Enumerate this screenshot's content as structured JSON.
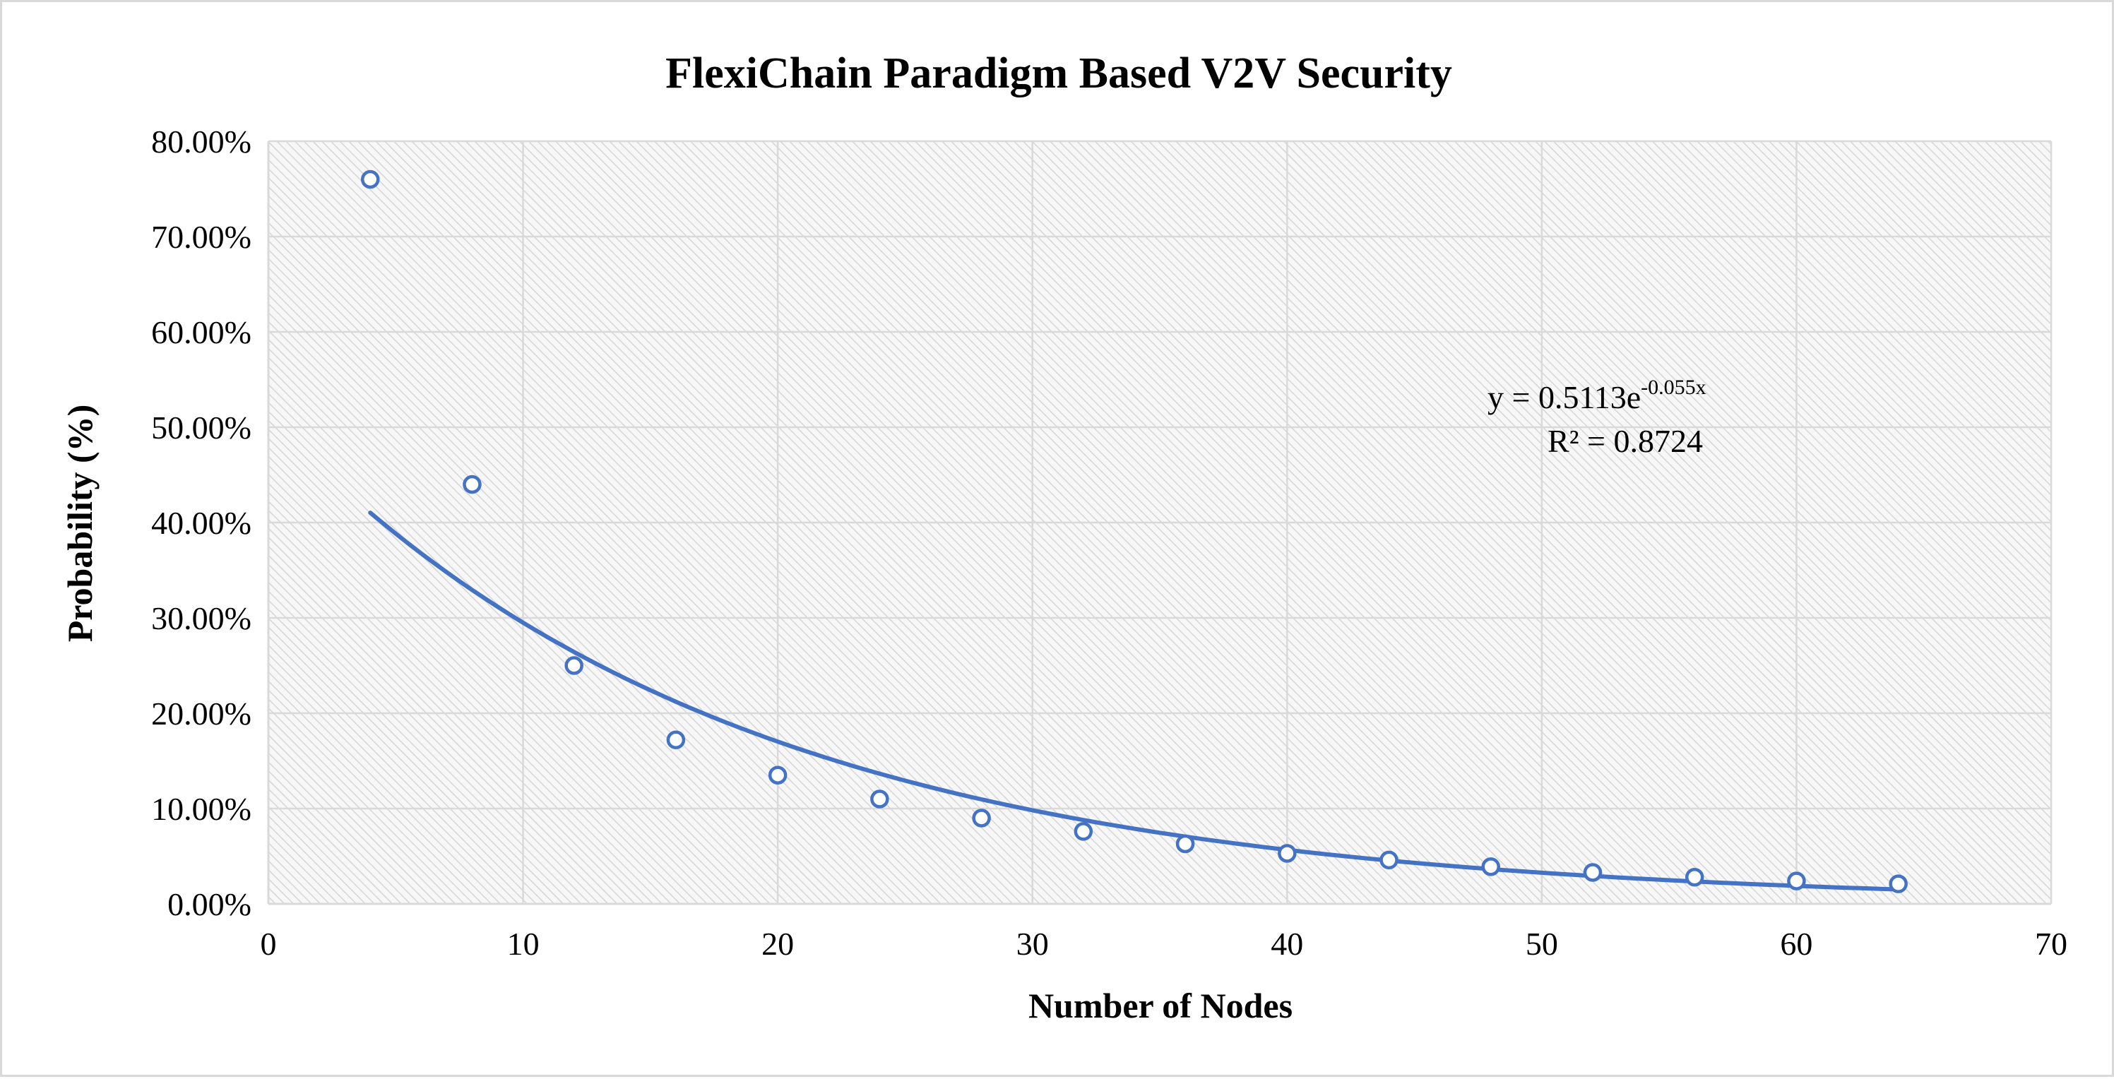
{
  "chart_data": {
    "type": "scatter",
    "title": "FlexiChain Paradigm Based V2V Security",
    "xlabel": "Number of Nodes",
    "ylabel": "Probability (%)",
    "xlim": [
      0,
      70
    ],
    "ylim": [
      0,
      0.8
    ],
    "x_ticks": [
      0,
      10,
      20,
      30,
      40,
      50,
      60,
      70
    ],
    "x_tick_labels": [
      "0",
      "10",
      "20",
      "30",
      "40",
      "50",
      "60",
      "70"
    ],
    "y_ticks": [
      0,
      0.1,
      0.2,
      0.3,
      0.4,
      0.5,
      0.6,
      0.7,
      0.8
    ],
    "y_tick_labels": [
      "0.00%",
      "10.00%",
      "20.00%",
      "30.00%",
      "40.00%",
      "50.00%",
      "60.00%",
      "70.00%",
      "80.00%"
    ],
    "grid": true,
    "series": [
      {
        "name": "Probability",
        "marker": "open-circle",
        "color": "#4472c4",
        "x": [
          4,
          8,
          12,
          16,
          20,
          24,
          28,
          32,
          36,
          40,
          44,
          48,
          52,
          56,
          60,
          64
        ],
        "y": [
          0.76,
          0.44,
          0.25,
          0.172,
          0.135,
          0.11,
          0.09,
          0.076,
          0.063,
          0.053,
          0.046,
          0.039,
          0.033,
          0.028,
          0.024,
          0.021
        ]
      }
    ],
    "trendline": {
      "type": "exponential",
      "a": 0.5113,
      "b": -0.055,
      "x_range": [
        4,
        64
      ],
      "color": "#4472c4",
      "equation_prefix": "y = 0.5113e",
      "equation_exponent": "-0.055x",
      "r_squared_label": "R² = 0.8724"
    }
  }
}
